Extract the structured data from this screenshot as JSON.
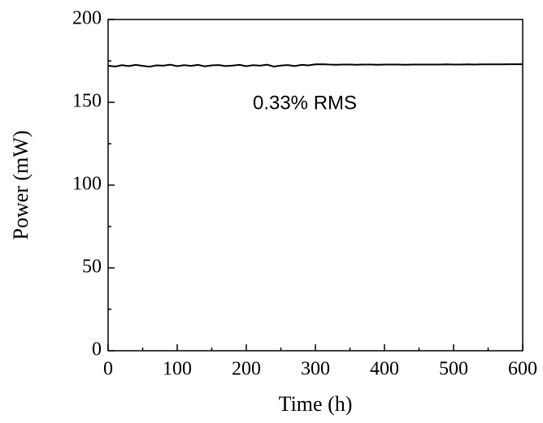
{
  "chart_data": {
    "type": "line",
    "xlabel": "Time (h)",
    "ylabel": "Power (mW)",
    "annotation": "0.33% RMS",
    "x": [
      0,
      10,
      20,
      30,
      40,
      50,
      60,
      70,
      80,
      90,
      100,
      110,
      120,
      130,
      140,
      150,
      160,
      170,
      180,
      190,
      200,
      210,
      220,
      230,
      240,
      250,
      260,
      270,
      280,
      290,
      300,
      310,
      320,
      330,
      340,
      350,
      360,
      370,
      380,
      390,
      400,
      410,
      420,
      430,
      440,
      450,
      460,
      470,
      480,
      490,
      500,
      510,
      520,
      530,
      540,
      550,
      560,
      570,
      580,
      590,
      600
    ],
    "series": [
      {
        "name": "Power",
        "color": "#000000",
        "values": [
          172.1,
          171.6,
          172.4,
          171.9,
          172.6,
          172.0,
          171.5,
          172.3,
          172.1,
          172.7,
          171.8,
          172.4,
          172.0,
          172.6,
          171.7,
          172.3,
          172.5,
          171.9,
          172.2,
          172.6,
          171.8,
          172.4,
          172.1,
          172.7,
          171.6,
          172.2,
          172.5,
          171.9,
          172.6,
          172.3,
          172.9,
          173.0,
          172.8,
          172.7,
          172.8,
          172.8,
          172.7,
          172.8,
          172.8,
          172.7,
          172.8,
          172.8,
          172.8,
          172.7,
          172.8,
          172.8,
          172.8,
          172.8,
          172.8,
          172.9,
          172.8,
          172.8,
          172.9,
          172.8,
          172.9,
          172.9,
          172.9,
          172.9,
          173.0,
          173.0,
          173.0
        ]
      }
    ],
    "xlim": [
      0,
      600
    ],
    "xticks": [
      0,
      100,
      200,
      300,
      400,
      500,
      600
    ],
    "xminorticks": [
      50,
      150,
      250,
      350,
      450,
      550
    ],
    "ylim": [
      0,
      200
    ],
    "yticks": [
      0,
      50,
      100,
      150,
      200
    ],
    "yminorticks": [
      25,
      75,
      125,
      175
    ]
  }
}
